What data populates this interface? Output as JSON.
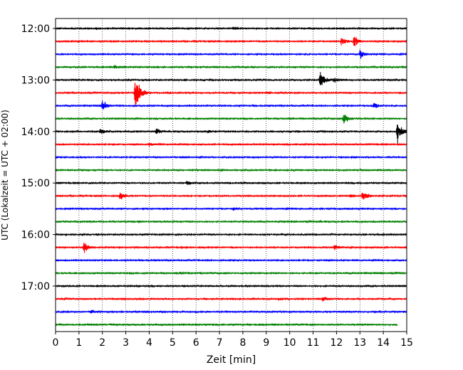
{
  "chart_data": {
    "type": "line",
    "xlabel": "Zeit  [min]",
    "ylabel": "UTC (Lokalzeit = UTC + 02:00)",
    "xlim": [
      0,
      15
    ],
    "xticks": [
      0,
      1,
      2,
      3,
      4,
      5,
      6,
      7,
      8,
      9,
      10,
      11,
      12,
      13,
      14,
      15
    ],
    "ytick_labels": [
      "12:00",
      "13:00",
      "14:00",
      "15:00",
      "16:00",
      "17:00"
    ],
    "ytick_minutes": [
      0,
      60,
      120,
      180,
      240,
      300
    ],
    "grid": "vertical dotted",
    "trace_interval_min": 15,
    "colors": [
      "#000000",
      "#ff0000",
      "#0000ff",
      "#008000"
    ],
    "series": [
      {
        "start": "12:00",
        "color": "#000000",
        "noise": 0.35,
        "events": [
          {
            "t": 7.6,
            "amp": 1.0
          },
          {
            "t": 1.7,
            "amp": 0.7
          }
        ]
      },
      {
        "start": "12:15",
        "color": "#ff0000",
        "noise": 0.3,
        "events": [
          {
            "t": 12.2,
            "amp": 4.0
          },
          {
            "t": 12.75,
            "amp": 4.5
          }
        ]
      },
      {
        "start": "12:30",
        "color": "#0000ff",
        "noise": 0.3,
        "events": [
          {
            "t": 13.0,
            "amp": 4.0
          }
        ]
      },
      {
        "start": "12:45",
        "color": "#008000",
        "noise": 0.35,
        "events": [
          {
            "t": 2.5,
            "amp": 1.2
          }
        ]
      },
      {
        "start": "13:00",
        "color": "#000000",
        "noise": 0.45,
        "events": [
          {
            "t": 11.3,
            "amp": 6.5
          },
          {
            "t": 11.9,
            "amp": 2.0
          }
        ]
      },
      {
        "start": "13:15",
        "color": "#ff0000",
        "noise": 0.4,
        "events": [
          {
            "t": 3.4,
            "amp": 14.0
          },
          {
            "t": 9.0,
            "amp": 1.0
          }
        ]
      },
      {
        "start": "13:30",
        "color": "#0000ff",
        "noise": 0.3,
        "events": [
          {
            "t": 2.0,
            "amp": 4.5
          },
          {
            "t": 13.6,
            "amp": 2.5
          }
        ]
      },
      {
        "start": "13:45",
        "color": "#008000",
        "noise": 0.3,
        "events": [
          {
            "t": 12.3,
            "amp": 4.0
          }
        ]
      },
      {
        "start": "14:00",
        "color": "#000000",
        "noise": 0.45,
        "events": [
          {
            "t": 14.6,
            "amp": 9.0
          },
          {
            "t": 4.3,
            "amp": 2.2
          },
          {
            "t": 1.9,
            "amp": 1.5
          },
          {
            "t": 6.5,
            "amp": 1.2
          }
        ]
      },
      {
        "start": "14:15",
        "color": "#ff0000",
        "noise": 0.3,
        "events": [
          {
            "t": 4.0,
            "amp": 1.5
          }
        ]
      },
      {
        "start": "14:30",
        "color": "#0000ff",
        "noise": 0.25,
        "events": []
      },
      {
        "start": "14:45",
        "color": "#008000",
        "noise": 0.25,
        "events": []
      },
      {
        "start": "15:00",
        "color": "#000000",
        "noise": 0.3,
        "events": [
          {
            "t": 5.6,
            "amp": 1.5
          }
        ]
      },
      {
        "start": "15:15",
        "color": "#ff0000",
        "noise": 0.3,
        "events": [
          {
            "t": 2.75,
            "amp": 4.0
          },
          {
            "t": 13.1,
            "amp": 4.5
          },
          {
            "t": 12.6,
            "amp": 1.5
          }
        ]
      },
      {
        "start": "15:30",
        "color": "#0000ff",
        "noise": 0.3,
        "events": [
          {
            "t": 7.6,
            "amp": 1.2
          }
        ]
      },
      {
        "start": "15:45",
        "color": "#008000",
        "noise": 0.3,
        "events": [
          {
            "t": 11.3,
            "amp": 1.0
          }
        ]
      },
      {
        "start": "16:00",
        "color": "#000000",
        "noise": 0.35,
        "events": []
      },
      {
        "start": "16:15",
        "color": "#ff0000",
        "noise": 0.3,
        "events": [
          {
            "t": 1.2,
            "amp": 4.5
          },
          {
            "t": 11.9,
            "amp": 3.0
          }
        ]
      },
      {
        "start": "16:30",
        "color": "#0000ff",
        "noise": 0.3,
        "events": []
      },
      {
        "start": "16:45",
        "color": "#008000",
        "noise": 0.3,
        "events": [
          {
            "t": 5.3,
            "amp": 1.0
          }
        ]
      },
      {
        "start": "17:00",
        "color": "#000000",
        "noise": 0.3,
        "events": []
      },
      {
        "start": "17:15",
        "color": "#ff0000",
        "noise": 0.4,
        "events": [
          {
            "t": 11.4,
            "amp": 2.0
          },
          {
            "t": 9.5,
            "amp": 1.0
          }
        ]
      },
      {
        "start": "17:30",
        "color": "#0000ff",
        "noise": 0.45,
        "events": [
          {
            "t": 1.5,
            "amp": 1.3
          }
        ]
      },
      {
        "start": "17:45",
        "color": "#008000",
        "noise": 0.35,
        "events": [],
        "end_min": 14.6
      }
    ]
  }
}
